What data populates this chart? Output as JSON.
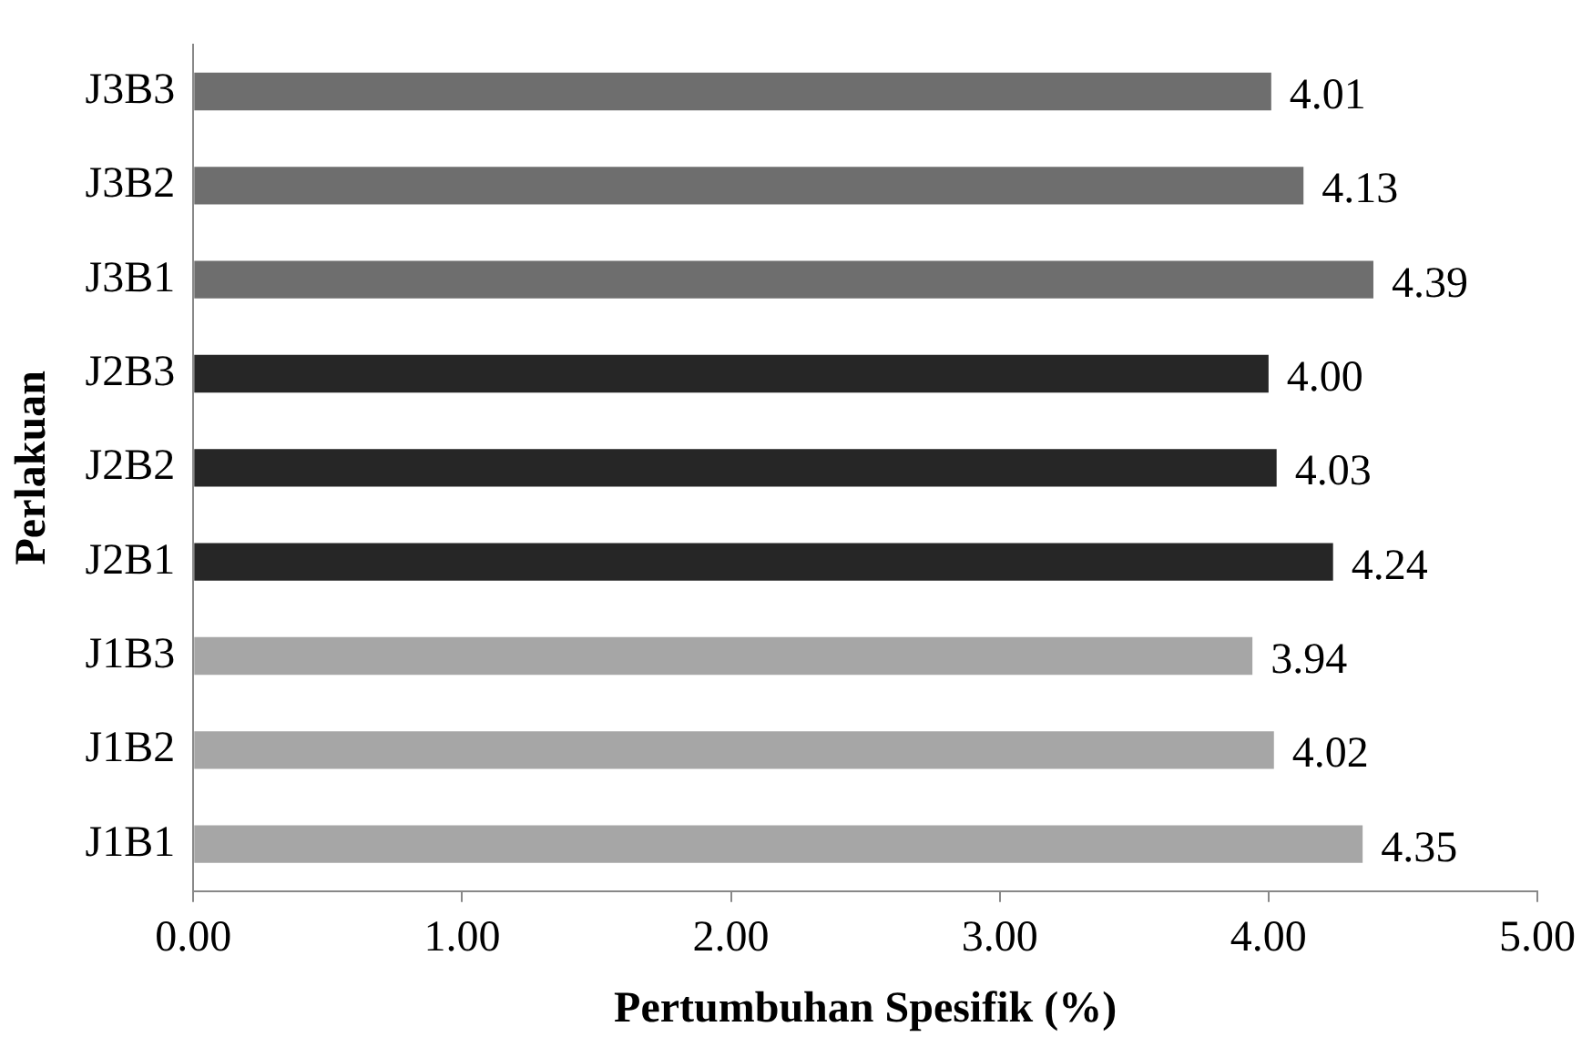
{
  "chart_data": {
    "type": "bar",
    "orientation": "horizontal",
    "xlabel": "Pertumbuhan Spesifik (%)",
    "ylabel": "Perlakuan",
    "categories": [
      "J3B3",
      "J3B2",
      "J3B1",
      "J2B3",
      "J2B2",
      "J2B1",
      "J1B3",
      "J1B2",
      "J1B1"
    ],
    "values": [
      4.01,
      4.13,
      4.39,
      4.0,
      4.03,
      4.24,
      3.94,
      4.02,
      4.35
    ],
    "value_labels": [
      "4.01",
      "4.13",
      "4.39",
      "4.00",
      "4.03",
      "4.24",
      "3.94",
      "4.02",
      "4.35"
    ],
    "colors": [
      "#6e6e6e",
      "#6e6e6e",
      "#6e6e6e",
      "#262626",
      "#262626",
      "#262626",
      "#a6a6a6",
      "#a6a6a6",
      "#a6a6a6"
    ],
    "xlim": [
      0,
      5
    ],
    "xticks": [
      {
        "value": 0,
        "label": "0.00"
      },
      {
        "value": 1,
        "label": "1.00"
      },
      {
        "value": 2,
        "label": "2.00"
      },
      {
        "value": 3,
        "label": "3.00"
      },
      {
        "value": 4,
        "label": "4.00"
      },
      {
        "value": 5,
        "label": "5.00"
      }
    ],
    "grid": false,
    "legend": false
  }
}
